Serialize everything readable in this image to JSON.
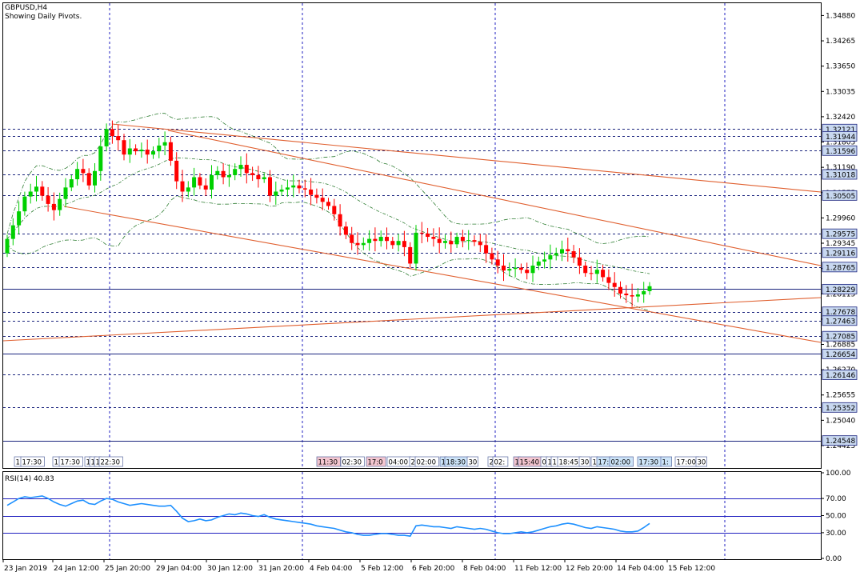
{
  "chart_header": {
    "symbol": "GBPUSD,H4",
    "subtitle": "Showing Daily Pivots."
  },
  "rsi_header": {
    "label": "RSI(14) 40.83"
  },
  "colors": {
    "bull": "#00d000",
    "bear": "#ff0000",
    "grid": "#2020c0",
    "pivot": "#1a237e",
    "channel": "#e06030",
    "bollinger": "#2e7d32",
    "rsi": "#1e90ff",
    "label_bg": "#c8d8f0"
  },
  "chart_data": {
    "type": "candlestick",
    "title": "GBPUSD,H4",
    "subtitle": "Showing Daily Pivots.",
    "price_range": [
      1.2388,
      1.3518
    ],
    "y_ticks": [
      "1.34880",
      "1.34265",
      "1.33650",
      "1.33035",
      "1.32420",
      "1.31805",
      "1.31190",
      "1.30575",
      "1.29960",
      "1.29345",
      "1.28730",
      "1.28115",
      "1.27500",
      "1.26885",
      "1.26270",
      "1.25655",
      "1.25040",
      "1.24425"
    ],
    "x_ticks": [
      "23 Jan 2019",
      "24 Jan 12:00",
      "25 Jan 20:00",
      "29 Jan 04:00",
      "30 Jan 12:00",
      "31 Jan 20:00",
      "4 Feb 04:00",
      "5 Feb 12:00",
      "6 Feb 20:00",
      "8 Feb 04:00",
      "11 Feb 12:00",
      "12 Feb 20:00",
      "14 Feb 04:00",
      "15 Feb 12:00"
    ],
    "pivot_levels": [
      {
        "label": "1.32121",
        "value": 1.32121
      },
      {
        "label": "1.31944",
        "value": 1.31944
      },
      {
        "label": "1.31596",
        "value": 1.31596
      },
      {
        "label": "1.31018",
        "value": 1.31018
      },
      {
        "label": "1.30505",
        "value": 1.30505
      },
      {
        "label": "1.29575",
        "value": 1.29575
      },
      {
        "label": "1.29116",
        "value": 1.29116
      },
      {
        "label": "1.28765",
        "value": 1.28765
      },
      {
        "label": "1.28229",
        "value": 1.28229
      },
      {
        "label": "1.27678",
        "value": 1.27678
      },
      {
        "label": "1.27463",
        "value": 1.27463
      },
      {
        "label": "1.27085",
        "value": 1.27085
      },
      {
        "label": "1.26654",
        "value": 1.26654
      },
      {
        "label": "1.26146",
        "value": 1.26146
      },
      {
        "label": "1.25352",
        "value": 1.25352
      },
      {
        "label": "1.24548",
        "value": 1.24548
      }
    ],
    "closes": [
      1.2945,
      1.2978,
      1.3012,
      1.3048,
      1.306,
      1.3072,
      1.305,
      1.303,
      1.3015,
      1.3042,
      1.307,
      1.309,
      1.3115,
      1.3105,
      1.3075,
      1.311,
      1.317,
      1.3212,
      1.3195,
      1.3185,
      1.315,
      1.3165,
      1.3158,
      1.3162,
      1.315,
      1.3158,
      1.3172,
      1.318,
      1.3135,
      1.3085,
      1.306,
      1.307,
      1.3095,
      1.3075,
      1.3065,
      1.31,
      1.311,
      1.3095,
      1.31,
      1.3115,
      1.3125,
      1.3105,
      1.31,
      1.309,
      1.3095,
      1.305,
      1.306,
      1.3065,
      1.307,
      1.3075,
      1.3068,
      1.3065,
      1.3052,
      1.3045,
      1.3035,
      1.3025,
      1.3005,
      1.2975,
      1.2955,
      1.2935,
      1.293,
      1.2935,
      1.2945,
      1.294,
      1.295,
      1.294,
      1.293,
      1.294,
      1.2925,
      1.2885,
      1.296,
      1.2958,
      1.295,
      1.2945,
      1.2935,
      1.294,
      1.2932,
      1.295,
      1.294,
      1.2942,
      1.2938,
      1.293,
      1.291,
      1.2895,
      1.288,
      1.2868,
      1.2872,
      1.2875,
      1.287,
      1.2862,
      1.288,
      1.289,
      1.2895,
      1.2905,
      1.291,
      1.292,
      1.2915,
      1.29,
      1.288,
      1.2862,
      1.286,
      1.287,
      1.2852,
      1.2838,
      1.2828,
      1.2812,
      1.2808,
      1.2805,
      1.281,
      1.2818,
      1.283
    ],
    "rsi": {
      "period": 14,
      "value": 40.83,
      "range": [
        0,
        100
      ],
      "levels": [
        70,
        50,
        30
      ],
      "y_ticks": [
        "100.00",
        "70.00",
        "50.00",
        "30.00",
        "0.00"
      ],
      "values": [
        62,
        66,
        70,
        72,
        71,
        72,
        73,
        70,
        66,
        63,
        61,
        64,
        67,
        68,
        64,
        63,
        67,
        70,
        69,
        66,
        64,
        62,
        63,
        64,
        63,
        62,
        61,
        61,
        62,
        55,
        47,
        43,
        44,
        46,
        44,
        45,
        48,
        50,
        52,
        51,
        53,
        52,
        50,
        49,
        51,
        48,
        46,
        45,
        44,
        43,
        42,
        41,
        40,
        38,
        37,
        36,
        35,
        33,
        31,
        30,
        28,
        27,
        27,
        28,
        29,
        29,
        28,
        27,
        27,
        26,
        38,
        39,
        38,
        37,
        37,
        36,
        35,
        37,
        36,
        35,
        34,
        35,
        34,
        32,
        30,
        29,
        29,
        30,
        31,
        30,
        31,
        33,
        35,
        37,
        38,
        40,
        41,
        40,
        38,
        36,
        35,
        37,
        36,
        35,
        34,
        32,
        31,
        31,
        32,
        36,
        40.83
      ]
    }
  },
  "session_tags": [
    {
      "text": "1",
      "style": "plain"
    },
    {
      "text": "17:30",
      "style": "plain"
    },
    {
      "text": "1",
      "style": "plain"
    },
    {
      "text": "17:30",
      "style": "plain"
    },
    {
      "text": "1",
      "style": "plain"
    },
    {
      "text": "1",
      "style": "plain"
    },
    {
      "text": "1",
      "style": "plain"
    },
    {
      "text": "22:30",
      "style": "plain"
    },
    {
      "text": "11:30",
      "style": "pink"
    },
    {
      "text": "02:30",
      "style": "plain"
    },
    {
      "text": "17:0",
      "style": "pink"
    },
    {
      "text": "04:00",
      "style": "plain"
    },
    {
      "text": "2",
      "style": "plain"
    },
    {
      "text": "02:00",
      "style": "plain"
    },
    {
      "text": "1",
      "style": "blue"
    },
    {
      "text": "18:30",
      "style": "blue"
    },
    {
      "text": "30",
      "style": "plain"
    },
    {
      "text": "2",
      "style": "plain"
    },
    {
      "text": "02:",
      "style": "plain"
    },
    {
      "text": "1",
      "style": "pink"
    },
    {
      "text": "15:40",
      "style": "pink"
    },
    {
      "text": "0",
      "style": "plain"
    },
    {
      "text": "1",
      "style": "plain"
    },
    {
      "text": "1",
      "style": "plain"
    },
    {
      "text": "18:45",
      "style": "plain"
    },
    {
      "text": "30",
      "style": "plain"
    },
    {
      "text": "1",
      "style": "plain"
    },
    {
      "text": "17:",
      "style": "blue"
    },
    {
      "text": "02:00",
      "style": "blue"
    },
    {
      "text": "17:30",
      "style": "blue"
    },
    {
      "text": "1:",
      "style": "blue"
    },
    {
      "text": "17:00",
      "style": "plain"
    },
    {
      "text": "30",
      "style": "plain"
    }
  ]
}
